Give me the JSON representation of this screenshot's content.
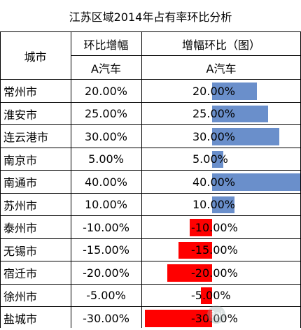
{
  "title": "江苏区域2014年占有率环比分析",
  "headers": {
    "city": "城市",
    "ratio": "环比增幅",
    "chart": "增幅环比（图）",
    "sub_ratio": "A汽车",
    "sub_chart": "A汽车"
  },
  "rows": [
    {
      "city": "常州市",
      "pct": "20.00%",
      "value": 20
    },
    {
      "city": "淮安市",
      "pct": "25.00%",
      "value": 25
    },
    {
      "city": "连云港市",
      "pct": "30.00%",
      "value": 30
    },
    {
      "city": "南京市",
      "pct": "5.00%",
      "value": 5
    },
    {
      "city": "南通市",
      "pct": "40.00%",
      "value": 40
    },
    {
      "city": "苏州市",
      "pct": "10.00%",
      "value": 10
    },
    {
      "city": "泰州市",
      "pct": "-10.00%",
      "value": -10
    },
    {
      "city": "无锡市",
      "pct": "-15.00%",
      "value": -15
    },
    {
      "city": "宿迁市",
      "pct": "-20.00%",
      "value": -20
    },
    {
      "city": "徐州市",
      "pct": "-5.00%",
      "value": -5
    },
    {
      "city": "盐城市",
      "pct": "-30.00%",
      "value": -30
    }
  ],
  "colors": {
    "positive": "#6a8fcb",
    "negative": "#ff0000",
    "grid": "#000000"
  },
  "chart_data": {
    "type": "bar",
    "categories": [
      "常州市",
      "淮安市",
      "连云港市",
      "南京市",
      "南通市",
      "苏州市",
      "泰州市",
      "无锡市",
      "宿迁市",
      "徐州市",
      "盐城市"
    ],
    "values": [
      20,
      25,
      30,
      5,
      40,
      10,
      -10,
      -15,
      -20,
      -5,
      -30
    ],
    "title": "增幅环比（图）"
  }
}
